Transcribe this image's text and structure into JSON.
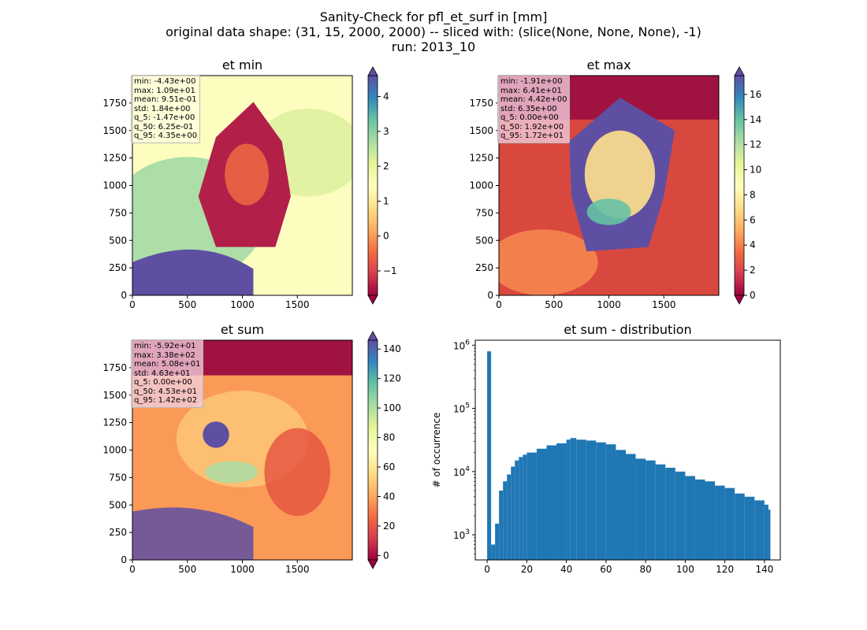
{
  "figure": {
    "title_lines": [
      "Sanity-Check for pfl_et_surf in [mm]",
      "original data shape: (31, 15, 2000, 2000) -- sliced with: (slice(None, None, None), -1)",
      "run: 2013_10"
    ]
  },
  "colors": {
    "histogram_bar": "#1f77b4",
    "spectral": [
      "#9e0142",
      "#d53e4f",
      "#f46d43",
      "#fdae61",
      "#fee08b",
      "#ffffbf",
      "#e6f598",
      "#abdda4",
      "#66c2a5",
      "#3288bd",
      "#5e4fa2"
    ]
  },
  "chart_data": [
    {
      "type": "heatmap",
      "title": "et min",
      "x_ticks": [
        0,
        500,
        1000,
        1500
      ],
      "y_ticks": [
        0,
        250,
        500,
        750,
        1000,
        1250,
        1500,
        1750
      ],
      "xlim": [
        0,
        2000
      ],
      "ylim": [
        0,
        2000
      ],
      "colorbar": {
        "ticks": [
          -1,
          0,
          1,
          2,
          3,
          4
        ],
        "range": [
          -1.7,
          4.6
        ],
        "extend": "both",
        "colormap": "Spectral"
      },
      "stats": [
        "min: -4.43e+00",
        "max: 1.09e+01",
        "mean: 9.51e-01",
        "std: 1.84e+00",
        "q_5: -1.47e+00",
        "q_50: 6.25e-01",
        "q_95: 4.35e+00"
      ]
    },
    {
      "type": "heatmap",
      "title": "et max",
      "x_ticks": [
        0,
        500,
        1000,
        1500
      ],
      "y_ticks": [
        0,
        250,
        500,
        750,
        1000,
        1250,
        1500,
        1750
      ],
      "xlim": [
        0,
        2000
      ],
      "ylim": [
        0,
        2000
      ],
      "colorbar": {
        "ticks": [
          0,
          2,
          4,
          6,
          8,
          10,
          12,
          14,
          16
        ],
        "range": [
          0,
          17.5
        ],
        "extend": "both",
        "colormap": "Spectral"
      },
      "stats": [
        "min: -1.91e+00",
        "max: 6.41e+01",
        "mean: 4.42e+00",
        "std: 6.35e+00",
        "q_5: 0.00e+00",
        "q_50: 1.92e+00",
        "q_95: 1.72e+01"
      ]
    },
    {
      "type": "heatmap",
      "title": "et sum",
      "x_ticks": [
        0,
        500,
        1000,
        1500
      ],
      "y_ticks": [
        0,
        250,
        500,
        750,
        1000,
        1250,
        1500,
        1750
      ],
      "xlim": [
        0,
        2000
      ],
      "ylim": [
        0,
        2000
      ],
      "colorbar": {
        "ticks": [
          0,
          20,
          40,
          60,
          80,
          100,
          120,
          140
        ],
        "range": [
          -3,
          146
        ],
        "extend": "both",
        "colormap": "Spectral"
      },
      "stats": [
        "min: -5.92e+01",
        "max: 3.38e+02",
        "mean: 5.08e+01",
        "std: 4.63e+01",
        "q_5: 0.00e+00",
        "q_50: 4.53e+01",
        "q_95: 1.42e+02"
      ]
    },
    {
      "type": "bar",
      "title": "et sum - distribution",
      "ylabel": "# of occurrence",
      "x_ticks": [
        0,
        20,
        40,
        60,
        80,
        100,
        120,
        140
      ],
      "xlim": [
        -6,
        148
      ],
      "yscale": "log",
      "ylim": [
        400,
        1200000
      ],
      "y_ticks": [
        1000,
        10000,
        100000,
        1000000
      ],
      "y_tick_labels": [
        [
          "10",
          "3"
        ],
        [
          "10",
          "4"
        ],
        [
          "10",
          "5"
        ],
        [
          "10",
          "6"
        ]
      ],
      "x": [
        0,
        2,
        4,
        6,
        8,
        10,
        12,
        14,
        16,
        18,
        20,
        25,
        30,
        35,
        40,
        42,
        45,
        50,
        55,
        60,
        65,
        70,
        75,
        80,
        85,
        90,
        95,
        100,
        105,
        110,
        115,
        120,
        125,
        130,
        135,
        140,
        142
      ],
      "values": [
        800000,
        700,
        1500,
        5000,
        7000,
        9000,
        12000,
        15000,
        17000,
        18500,
        20000,
        23000,
        26000,
        28000,
        32000,
        34000,
        32000,
        31000,
        29000,
        27000,
        22000,
        19000,
        16000,
        15000,
        13000,
        11500,
        10000,
        8500,
        7500,
        7000,
        6000,
        5500,
        4500,
        4000,
        3500,
        3000,
        2500
      ]
    }
  ]
}
